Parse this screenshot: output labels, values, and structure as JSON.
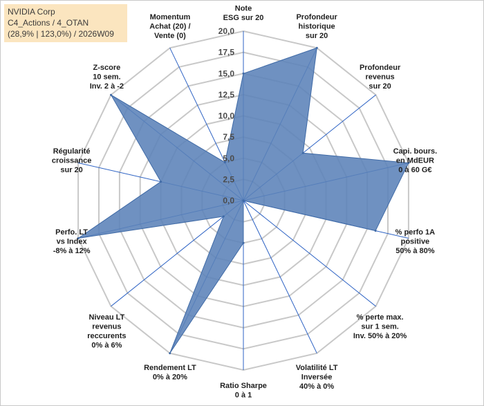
{
  "header": {
    "line1": "NVIDIA Corp",
    "line2": "C4_Actions / 4_OTAN",
    "line3": "(28,9% | 123,0%) / 2026W09"
  },
  "colors": {
    "fill": "#5b82b8",
    "stroke": "#3f6aa6",
    "grid": "#c8c8c8",
    "spoke": "#2e63c4",
    "header_bg": "#fbe5bf"
  },
  "chart_data": {
    "type": "radar",
    "title": "NVIDIA Corp",
    "rmax": 20,
    "ticks": [
      "0,0",
      "2,5",
      "5,0",
      "7,5",
      "10,0",
      "12,5",
      "15,0",
      "17,5",
      "20,0"
    ],
    "tick_values": [
      0,
      2.5,
      5,
      7.5,
      10,
      12.5,
      15,
      17.5,
      20
    ],
    "axes": [
      {
        "label": [
          "Note",
          "ESG sur 20"
        ],
        "value": 15
      },
      {
        "label": [
          "Profondeur",
          "historique",
          "sur 20"
        ],
        "value": 20
      },
      {
        "label": [
          "Profondeur",
          "revenus",
          "sur 20"
        ],
        "value": 9
      },
      {
        "label": [
          "Capi. bours.",
          "en MdEUR",
          "0 à 60 G€"
        ],
        "value": 20
      },
      {
        "label": [
          "% perfo 1A",
          "positive",
          "50% à 80%"
        ],
        "value": 16
      },
      {
        "label": [
          "% perte max.",
          "sur 1 sem.",
          "Inv. 50% à 20%"
        ],
        "value": 0
      },
      {
        "label": [
          "Volatilité LT",
          "Inversée",
          "40% à 0%"
        ],
        "value": 0
      },
      {
        "label": [
          "Ratio Sharpe",
          "0 à 1"
        ],
        "value": 5
      },
      {
        "label": [
          "Rendement LT",
          "0% à 20%"
        ],
        "value": 20
      },
      {
        "label": [
          "Niveau LT",
          "revenus",
          "reccurents",
          "0% à 6%"
        ],
        "value": 3
      },
      {
        "label": [
          "Perfo. LT",
          "vs Index",
          "-8% à 12%"
        ],
        "value": 20
      },
      {
        "label": [
          "Régularité",
          "croissance",
          "sur 20"
        ],
        "value": 10
      },
      {
        "label": [
          "Z-score",
          "10 sem.",
          "Inv. 2 à -2"
        ],
        "value": 20
      },
      {
        "label": [
          "Momentum",
          "Achat (20) /",
          "Vente (0)"
        ],
        "value": 5
      }
    ]
  }
}
